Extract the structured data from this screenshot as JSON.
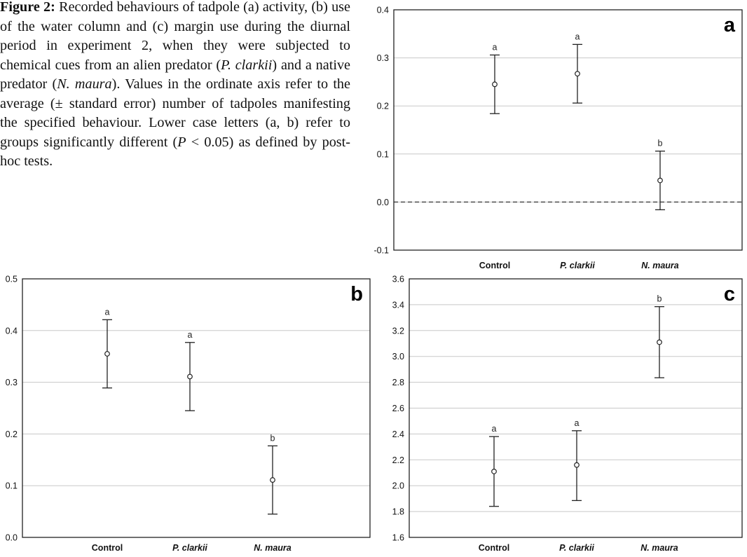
{
  "caption": {
    "label": "Figure 2:",
    "text_1": " Recorded behaviours of tadpole (a) activity, (b) use of the water column and (c) margin use during the diurnal period in experiment 2, when they were subjected to chemical cues from an alien predator (",
    "italic_1": "P. clarkii",
    "text_2": ") and a native predator (",
    "italic_2": "N. maura",
    "text_3": "). Values in the ordinate axis refer to the average (± standard error) number of tadpoles manifesting the specified behaviour. Lower case letters (a, b) refer to groups significantly different (",
    "italic_3": "P",
    "text_4": " < 0.05) as defined by post-hoc tests."
  },
  "chart_data": [
    {
      "panel": "a",
      "type": "scatter",
      "categories": [
        "Control",
        "P. clarkii",
        "N. maura"
      ],
      "means": [
        0.245,
        0.267,
        0.045
      ],
      "lower": [
        0.184,
        0.206,
        -0.016
      ],
      "upper": [
        0.306,
        0.328,
        0.106
      ],
      "group_letters": [
        "a",
        "a",
        "b"
      ],
      "ylim": [
        -0.1,
        0.4
      ],
      "yticks": [
        "0.4",
        "0.3",
        "0.2",
        "0.1",
        "0.0",
        "-0.1"
      ],
      "reference_line": 0.0,
      "grid": true
    },
    {
      "panel": "b",
      "type": "scatter",
      "categories": [
        "Control",
        "P. clarkii",
        "N. maura"
      ],
      "means": [
        0.355,
        0.311,
        0.111
      ],
      "lower": [
        0.289,
        0.245,
        0.045
      ],
      "upper": [
        0.421,
        0.377,
        0.177
      ],
      "group_letters": [
        "a",
        "a",
        "b"
      ],
      "ylim": [
        0.0,
        0.5
      ],
      "yticks": [
        "0.5",
        "0.4",
        "0.3",
        "0.2",
        "0.1",
        "0.0"
      ],
      "grid": true
    },
    {
      "panel": "c",
      "type": "scatter",
      "categories": [
        "Control",
        "P. clarkii",
        "N. maura"
      ],
      "means": [
        2.11,
        2.16,
        3.11
      ],
      "lower": [
        1.84,
        1.885,
        2.835
      ],
      "upper": [
        2.38,
        2.425,
        3.385
      ],
      "group_letters": [
        "a",
        "a",
        "b"
      ],
      "ylim": [
        1.6,
        3.6
      ],
      "yticks": [
        "3.6",
        "3.4",
        "3.2",
        "3.0",
        "2.8",
        "2.6",
        "2.4",
        "2.2",
        "2.0",
        "1.8",
        "1.6"
      ],
      "grid": true
    }
  ],
  "colors": {
    "axis": "#222222",
    "grid": "#c8c8c8",
    "marker_fill": "#ffffff"
  }
}
